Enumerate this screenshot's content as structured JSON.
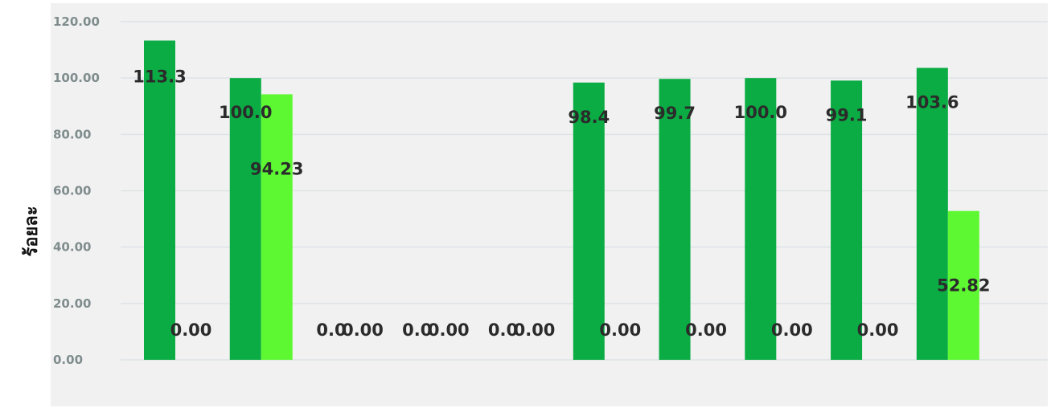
{
  "chart_data": {
    "type": "bar",
    "ylabel": "ร้อยละ",
    "ylim": [
      0,
      120
    ],
    "grid": true,
    "y_ticks": [
      "0.00",
      "20.00",
      "40.00",
      "60.00",
      "80.00",
      "100.00",
      "120.00"
    ],
    "categories": [
      "",
      "",
      "",
      "",
      "",
      "",
      "",
      "",
      "",
      "",
      ""
    ],
    "series": [
      {
        "color": "#0bac44",
        "values": [
          113.3,
          100.0,
          0,
          0,
          0,
          98.4,
          99.7,
          100.0,
          99.1,
          103.6,
          null
        ],
        "labels": [
          "113.3",
          "100.0",
          "0.0",
          "0.0",
          "0.0",
          "98.4",
          "99.7",
          "100.0",
          "99.1",
          "103.6",
          null
        ]
      },
      {
        "color": "#5ef832",
        "values": [
          0,
          94.23,
          0,
          0,
          0,
          0,
          0,
          0,
          0,
          52.82,
          null
        ],
        "labels": [
          "0.00",
          "94.23",
          "0.00",
          "0.00",
          "0.00",
          "0.00",
          "0.00",
          "0.00",
          "0.00",
          "52.82",
          null
        ]
      }
    ]
  }
}
